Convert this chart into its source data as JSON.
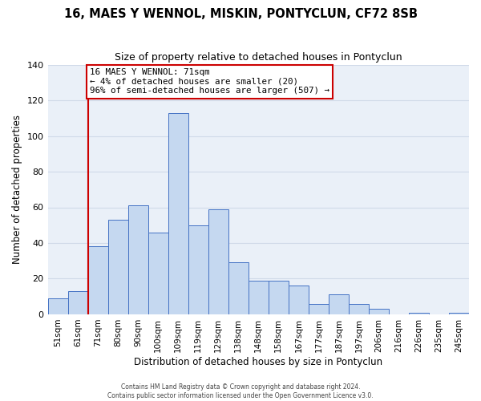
{
  "title": "16, MAES Y WENNOL, MISKIN, PONTYCLUN, CF72 8SB",
  "subtitle": "Size of property relative to detached houses in Pontyclun",
  "xlabel": "Distribution of detached houses by size in Pontyclun",
  "ylabel": "Number of detached properties",
  "bar_labels": [
    "51sqm",
    "61sqm",
    "71sqm",
    "80sqm",
    "90sqm",
    "100sqm",
    "109sqm",
    "119sqm",
    "129sqm",
    "138sqm",
    "148sqm",
    "158sqm",
    "167sqm",
    "177sqm",
    "187sqm",
    "197sqm",
    "206sqm",
    "216sqm",
    "226sqm",
    "235sqm",
    "245sqm"
  ],
  "bar_heights": [
    9,
    13,
    38,
    53,
    61,
    46,
    113,
    50,
    59,
    29,
    19,
    19,
    16,
    6,
    11,
    6,
    3,
    0,
    1,
    0,
    1
  ],
  "bar_color": "#c5d8f0",
  "bar_edge_color": "#4472c4",
  "vline_x_index": 2,
  "vline_color": "#cc0000",
  "annotation_title": "16 MAES Y WENNOL: 71sqm",
  "annotation_line1": "← 4% of detached houses are smaller (20)",
  "annotation_line2": "96% of semi-detached houses are larger (507) →",
  "annotation_box_edge": "#cc0000",
  "ylim": [
    0,
    140
  ],
  "yticks": [
    0,
    20,
    40,
    60,
    80,
    100,
    120,
    140
  ],
  "bg_color": "#eaf0f8",
  "grid_color": "#d0dae8",
  "footer1": "Contains HM Land Registry data © Crown copyright and database right 2024.",
  "footer2": "Contains public sector information licensed under the Open Government Licence v3.0."
}
